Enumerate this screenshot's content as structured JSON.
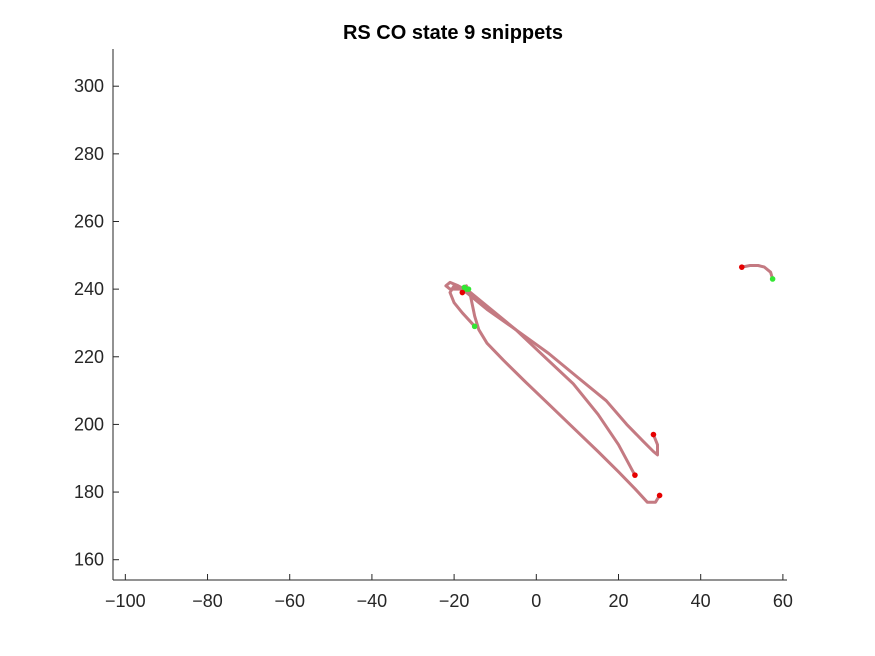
{
  "chart_data": {
    "type": "line",
    "title": "RS  CO state 9 snippets",
    "xlabel": "",
    "ylabel": "",
    "xlim": [
      -103,
      61
    ],
    "ylim": [
      154,
      311
    ],
    "x_ticks": [
      -100,
      -80,
      -60,
      -40,
      -20,
      0,
      20,
      40,
      60
    ],
    "y_ticks": [
      160,
      180,
      200,
      220,
      240,
      260,
      280,
      300
    ],
    "grid": false,
    "box": "left-bottom",
    "colors": {
      "trajectory": "#c47a82",
      "start_marker": "#33e633",
      "end_marker": "#e60000",
      "axis": "#262626"
    },
    "series": [
      {
        "x": [
          -15,
          -18,
          -20,
          -21,
          -20,
          -17,
          -12,
          -5,
          3,
          10,
          17,
          22,
          26,
          28.5,
          29.5,
          29.5,
          28.5
        ],
        "y": [
          229,
          233,
          236,
          239,
          241,
          239,
          234,
          228,
          221,
          214,
          207,
          200,
          195,
          192,
          191,
          194,
          197
        ]
      },
      {
        "x": [
          -17,
          -19,
          -21,
          -22,
          -21,
          -19,
          -16,
          -11,
          -5,
          2,
          9,
          15,
          20,
          24
        ],
        "y": [
          240,
          240,
          240,
          241,
          242,
          241,
          239,
          234,
          228,
          220,
          212,
          203,
          194,
          185
        ]
      },
      {
        "x": [
          -17,
          -16,
          -15,
          -14,
          -12,
          -8,
          -3,
          3,
          9,
          15,
          20,
          24,
          27,
          29,
          30
        ],
        "y": [
          241,
          238,
          232,
          228,
          224,
          219,
          213,
          206,
          199,
          192,
          186,
          181,
          177,
          177,
          179
        ]
      },
      {
        "x": [
          50,
          52,
          54,
          55.5,
          57,
          57.5
        ],
        "y": [
          246.5,
          247,
          247,
          246.5,
          245,
          243
        ]
      }
    ],
    "start_points": [
      {
        "x": -15,
        "y": 229
      },
      {
        "x": -17,
        "y": 240
      },
      {
        "x": -17.5,
        "y": 240.5
      },
      {
        "x": -16.5,
        "y": 240
      },
      {
        "x": 57.5,
        "y": 243
      }
    ],
    "end_points": [
      {
        "x": 28.5,
        "y": 197
      },
      {
        "x": 24,
        "y": 185
      },
      {
        "x": 30,
        "y": 179
      },
      {
        "x": -18,
        "y": 239
      },
      {
        "x": 50,
        "y": 246.5
      }
    ]
  }
}
